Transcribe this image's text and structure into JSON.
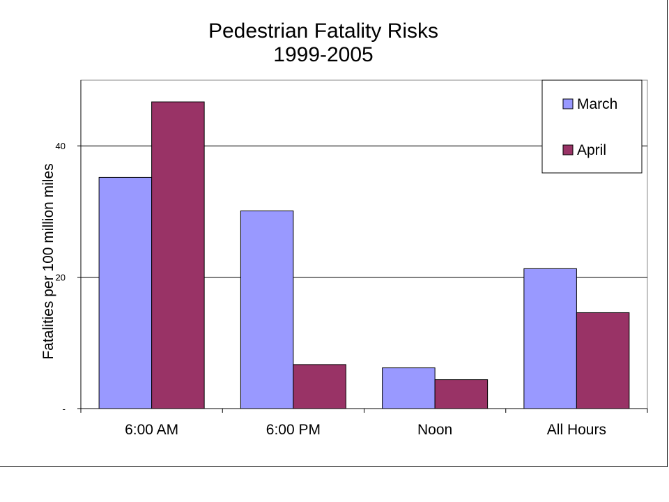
{
  "chart_data": {
    "type": "bar",
    "title": [
      "Pedestrian Fatality Risks",
      "1999-2005"
    ],
    "ylabel": "Fatalities per 100 million miles",
    "xlabel": "",
    "categories": [
      "6:00 AM",
      "6:00 PM",
      "Noon",
      "All Hours"
    ],
    "series": [
      {
        "name": "March",
        "values": [
          35.2,
          30.1,
          6.2,
          21.3
        ],
        "color": "#9999ff"
      },
      {
        "name": "April",
        "values": [
          46.7,
          6.7,
          4.4,
          14.6
        ],
        "color": "#993366"
      }
    ],
    "ylim": [
      0,
      50
    ],
    "yticks": [
      0,
      20,
      40
    ],
    "ytick_labels": [
      "-",
      "20",
      "40"
    ],
    "grid": true,
    "legend": "top-right"
  }
}
